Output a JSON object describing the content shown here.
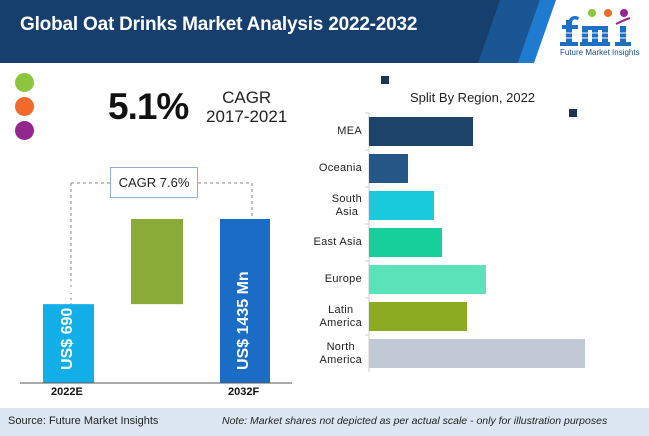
{
  "header": {
    "title": "Global Oat Drinks Market Analysis  2022-2032",
    "logo_text": "fmi",
    "logo_tagline": "Future Market Insights",
    "colors": {
      "navy": "#163f6e",
      "stripe": "#1e7bd0"
    }
  },
  "legend_dots": [
    {
      "name": "green-dot",
      "color": "#8cc63f"
    },
    {
      "name": "orange-dot",
      "color": "#f26a2b"
    },
    {
      "name": "purple-dot",
      "color": "#93268f"
    }
  ],
  "cagr_historic": {
    "value": "5.1%",
    "label": "CAGR",
    "period": "2017-2021"
  },
  "cagr_forecast": {
    "label": "CAGR 7.6%"
  },
  "footer": {
    "source": "Source: Future Market Insights",
    "note": "Note: Market shares not depicted as per actual scale - only for illustration purposes"
  },
  "chart_data": [
    {
      "type": "bar",
      "title": "",
      "categories": [
        "2022E",
        "2032F"
      ],
      "values": [
        690,
        1435
      ],
      "value_labels": [
        "US$ 690 Mn",
        "US$ 1435 Mn"
      ],
      "increment": 745,
      "annotation": "CAGR 7.6%",
      "colors": [
        "#12aee8",
        "#8aab35",
        "#1a6cc4"
      ],
      "xlabel": "",
      "ylabel": "",
      "grid": false
    },
    {
      "type": "bar",
      "orientation": "horizontal",
      "title": "Split By Region, 2022",
      "categories": [
        "MEA",
        "Oceania",
        "South Asia",
        "East Asia",
        "Europe",
        "Latin America",
        "North America"
      ],
      "category_lines": [
        [
          "MEA"
        ],
        [
          "Oceania"
        ],
        [
          "South",
          "Asia"
        ],
        [
          "East Asia"
        ],
        [
          "Europe"
        ],
        [
          "Latin",
          "America"
        ],
        [
          "North",
          "America"
        ]
      ],
      "values": [
        104,
        39,
        65,
        73,
        117,
        98,
        216
      ],
      "colors": [
        "#1d4368",
        "#245785",
        "#19cadc",
        "#17cf9a",
        "#5be2b8",
        "#8caa22",
        "#c0c8d4"
      ],
      "xlim": [
        0,
        230
      ],
      "grid": false,
      "note": "relative illustrative lengths"
    }
  ]
}
